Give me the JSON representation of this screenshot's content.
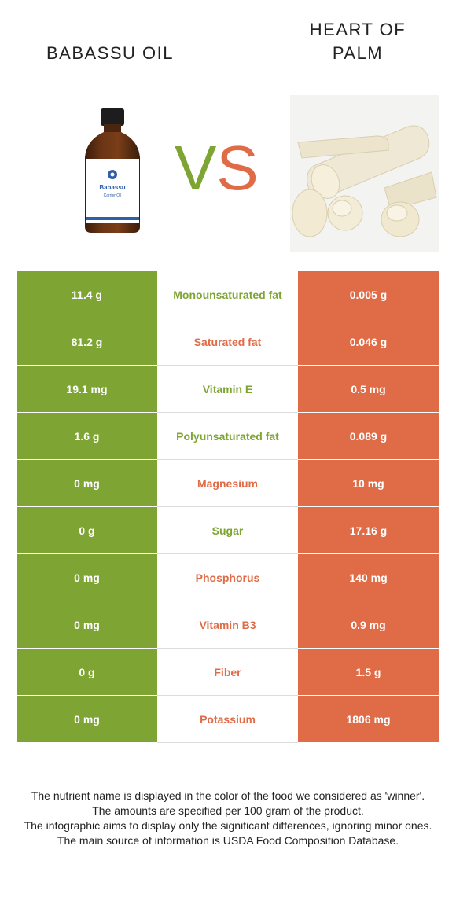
{
  "header": {
    "left_title": "BABASSU OIL",
    "right_title_line1": "HEART OF",
    "right_title_line2": "PALM",
    "vs_v": "V",
    "vs_s": "S"
  },
  "bottle": {
    "brand": "Babassu",
    "subtitle": "Carrier Oil"
  },
  "colors": {
    "left": "#7ea534",
    "right": "#e06b47"
  },
  "rows": [
    {
      "left": "11.4 g",
      "name": "Monounsaturated fat",
      "right": "0.005 g",
      "winner": "left"
    },
    {
      "left": "81.2 g",
      "name": "Saturated fat",
      "right": "0.046 g",
      "winner": "right"
    },
    {
      "left": "19.1 mg",
      "name": "Vitamin E",
      "right": "0.5 mg",
      "winner": "left"
    },
    {
      "left": "1.6 g",
      "name": "Polyunsaturated fat",
      "right": "0.089 g",
      "winner": "left"
    },
    {
      "left": "0 mg",
      "name": "Magnesium",
      "right": "10 mg",
      "winner": "right"
    },
    {
      "left": "0 g",
      "name": "Sugar",
      "right": "17.16 g",
      "winner": "left"
    },
    {
      "left": "0 mg",
      "name": "Phosphorus",
      "right": "140 mg",
      "winner": "right"
    },
    {
      "left": "0 mg",
      "name": "Vitamin B3",
      "right": "0.9 mg",
      "winner": "right"
    },
    {
      "left": "0 g",
      "name": "Fiber",
      "right": "1.5 g",
      "winner": "right"
    },
    {
      "left": "0 mg",
      "name": "Potassium",
      "right": "1806 mg",
      "winner": "right"
    }
  ],
  "footer": {
    "line1": "The nutrient name is displayed in the color of the food we considered as 'winner'.",
    "line2": "The amounts are specified per 100 gram of the product.",
    "line3": "The infographic aims to display only the significant differences, ignoring minor ones.",
    "line4": "The main source of information is USDA Food Composition Database."
  }
}
